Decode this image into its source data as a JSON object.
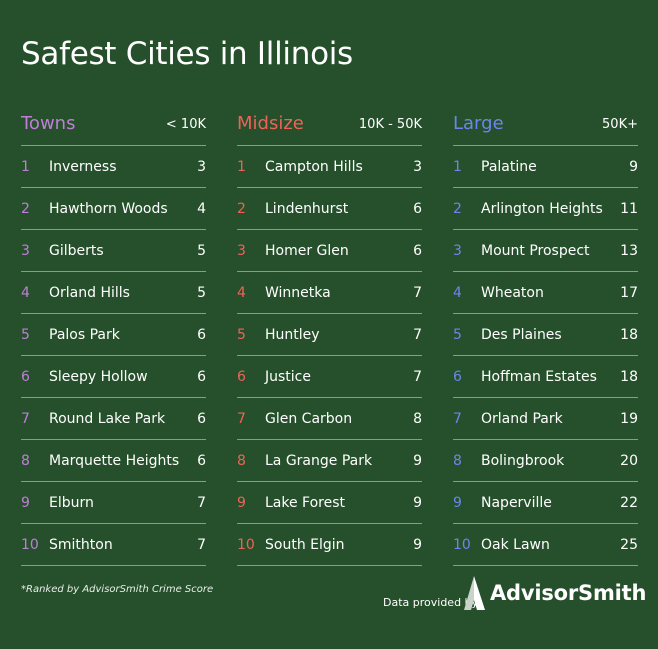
{
  "title": "Safest Cities in Illinois",
  "colors": {
    "background": "#25502b",
    "towns_accent": "#c07ed8",
    "midsize_accent": "#ee6358",
    "large_accent": "#6c86ec",
    "divider": "#7fa284"
  },
  "columns": [
    {
      "name": "Towns",
      "range": "< 10K",
      "rows": [
        {
          "rank": "1",
          "city": "Inverness",
          "score": "3"
        },
        {
          "rank": "2",
          "city": "Hawthorn Woods",
          "score": "4"
        },
        {
          "rank": "3",
          "city": "Gilberts",
          "score": "5"
        },
        {
          "rank": "4",
          "city": "Orland Hills",
          "score": "5"
        },
        {
          "rank": "5",
          "city": "Palos Park",
          "score": "6"
        },
        {
          "rank": "6",
          "city": "Sleepy Hollow",
          "score": "6"
        },
        {
          "rank": "7",
          "city": "Round Lake Park",
          "score": "6"
        },
        {
          "rank": "8",
          "city": "Marquette Heights",
          "score": "6"
        },
        {
          "rank": "9",
          "city": "Elburn",
          "score": "7"
        },
        {
          "rank": "10",
          "city": "Smithton",
          "score": "7"
        }
      ]
    },
    {
      "name": "Midsize",
      "range": "10K - 50K",
      "rows": [
        {
          "rank": "1",
          "city": "Campton Hills",
          "score": "3"
        },
        {
          "rank": "2",
          "city": "Lindenhurst",
          "score": "6"
        },
        {
          "rank": "3",
          "city": "Homer Glen",
          "score": "6"
        },
        {
          "rank": "4",
          "city": "Winnetka",
          "score": "7"
        },
        {
          "rank": "5",
          "city": "Huntley",
          "score": "7"
        },
        {
          "rank": "6",
          "city": "Justice",
          "score": "7"
        },
        {
          "rank": "7",
          "city": "Glen Carbon",
          "score": "8"
        },
        {
          "rank": "8",
          "city": "La Grange Park",
          "score": "9"
        },
        {
          "rank": "9",
          "city": "Lake Forest",
          "score": "9"
        },
        {
          "rank": "10",
          "city": "South Elgin",
          "score": "9"
        }
      ]
    },
    {
      "name": "Large",
      "range": "50K+",
      "rows": [
        {
          "rank": "1",
          "city": "Palatine",
          "score": "9"
        },
        {
          "rank": "2",
          "city": "Arlington Heights",
          "score": "11"
        },
        {
          "rank": "3",
          "city": "Mount Prospect",
          "score": "13"
        },
        {
          "rank": "4",
          "city": "Wheaton",
          "score": "17"
        },
        {
          "rank": "5",
          "city": "Des Plaines",
          "score": "18"
        },
        {
          "rank": "6",
          "city": "Hoffman Estates",
          "score": "18"
        },
        {
          "rank": "7",
          "city": "Orland Park",
          "score": "19"
        },
        {
          "rank": "8",
          "city": "Bolingbrook",
          "score": "20"
        },
        {
          "rank": "9",
          "city": "Naperville",
          "score": "22"
        },
        {
          "rank": "10",
          "city": "Oak Lawn",
          "score": "25"
        }
      ]
    }
  ],
  "footnote": "*Ranked by AdvisorSmith Crime Score",
  "provided_by": "Data provided by",
  "brand": {
    "name": "AdvisorSmith",
    "icon": "advisorsmith-logo-icon"
  }
}
